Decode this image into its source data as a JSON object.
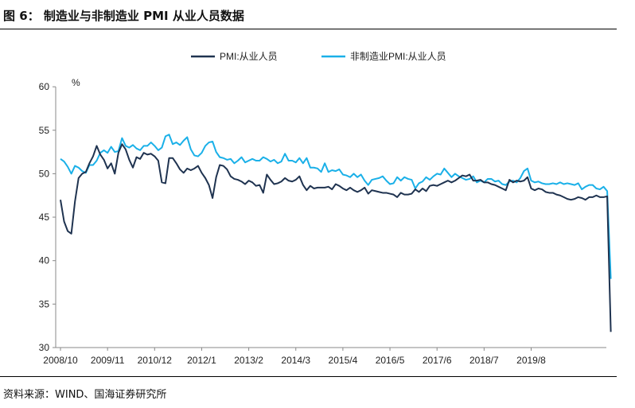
{
  "figure": {
    "title": "图 6：  制造业与非制造业 PMI 从业人员数据",
    "source": "资料来源：WIND、国海证券研究所"
  },
  "colors": {
    "series1": "#1f3350",
    "series2": "#1ab0e8",
    "axis": "#888888",
    "text": "#222222"
  },
  "chart_data": {
    "type": "line",
    "title": "",
    "xlabel": "",
    "ylabel": "%",
    "ylim": [
      30,
      60
    ],
    "yticks": [
      30,
      35,
      40,
      45,
      50,
      55,
      60
    ],
    "x_start": "2008-10",
    "x_tick_labels": [
      "2008/10",
      "2009/11",
      "2010/12",
      "2012/1",
      "2013/2",
      "2014/3",
      "2015/4",
      "2016/5",
      "2017/6",
      "2018/7",
      "2019/8"
    ],
    "legend_position": "top-center",
    "grid": false,
    "series": [
      {
        "name": "PMI:从业人员",
        "color": "#1f3350",
        "values": [
          47.0,
          44.5,
          43.4,
          43.1,
          46.8,
          49.5,
          50.0,
          50.2,
          51.2,
          52.0,
          53.2,
          52.2,
          51.6,
          50.6,
          51.2,
          50.0,
          52.4,
          53.4,
          52.8,
          51.6,
          50.7,
          51.9,
          51.7,
          52.4,
          52.2,
          52.3,
          52.0,
          51.5,
          49.0,
          48.9,
          51.8,
          51.8,
          51.2,
          50.5,
          50.1,
          50.6,
          50.4,
          50.6,
          50.9,
          50.1,
          49.5,
          48.7,
          47.2,
          49.6,
          51.0,
          50.9,
          50.5,
          49.7,
          49.4,
          49.3,
          49.1,
          48.8,
          49.2,
          49.0,
          48.6,
          48.7,
          47.8,
          49.9,
          49.3,
          48.8,
          48.9,
          49.1,
          49.5,
          49.2,
          49.1,
          49.3,
          49.7,
          48.7,
          48.1,
          48.6,
          48.3,
          48.4,
          48.4,
          48.4,
          48.5,
          48.2,
          48.8,
          48.6,
          48.3,
          48.1,
          48.4,
          48.1,
          47.9,
          48.1,
          48.4,
          47.7,
          48.1,
          48.0,
          47.9,
          47.8,
          47.8,
          47.7,
          47.6,
          47.3,
          47.8,
          47.6,
          47.6,
          47.7,
          48.2,
          47.9,
          48.3,
          48.0,
          48.6,
          48.7,
          48.6,
          48.8,
          49.0,
          49.2,
          49.0,
          49.2,
          49.5,
          49.8,
          49.7,
          49.9,
          49.2,
          49.2,
          49.3,
          49.0,
          49.0,
          48.8,
          48.7,
          48.5,
          48.3,
          48.1,
          49.3,
          49.0,
          49.2,
          49.1,
          49.2,
          49.6,
          48.3,
          48.1,
          48.3,
          48.2,
          47.9,
          47.8,
          47.8,
          47.6,
          47.5,
          47.3,
          47.1,
          47.0,
          47.1,
          47.3,
          47.2,
          47.0,
          47.3,
          47.3,
          47.5,
          47.3,
          47.3,
          47.4,
          31.8
        ]
      },
      {
        "name": "非制造业PMI:从业人员",
        "color": "#1ab0e8",
        "values": [
          51.7,
          51.4,
          50.8,
          50.0,
          50.9,
          50.7,
          50.3,
          50.1,
          51.0,
          51.0,
          51.5,
          52.4,
          52.7,
          52.4,
          53.1,
          52.5,
          52.6,
          54.1,
          53.2,
          53.0,
          53.3,
          52.9,
          52.7,
          53.2,
          53.2,
          53.6,
          53.2,
          52.7,
          53.0,
          54.3,
          54.5,
          53.4,
          53.6,
          53.3,
          53.8,
          54.2,
          52.8,
          52.1,
          52.0,
          52.4,
          53.2,
          53.6,
          53.7,
          52.5,
          51.9,
          51.8,
          51.6,
          51.7,
          51.2,
          51.5,
          51.9,
          51.3,
          51.5,
          51.7,
          51.5,
          51.5,
          51.9,
          51.7,
          51.4,
          51.6,
          51.2,
          51.4,
          52.3,
          51.5,
          51.5,
          51.3,
          51.8,
          51.2,
          51.8,
          50.7,
          50.7,
          50.6,
          50.2,
          51.2,
          50.2,
          50.4,
          50.3,
          50.5,
          49.9,
          49.8,
          49.6,
          50.0,
          49.6,
          49.9,
          49.2,
          48.7,
          49.3,
          49.4,
          49.5,
          49.7,
          49.2,
          48.8,
          48.9,
          49.6,
          49.2,
          49.6,
          49.4,
          49.3,
          48.3,
          48.9,
          49.1,
          49.6,
          49.3,
          49.7,
          50.0,
          49.9,
          50.6,
          50.1,
          49.6,
          50.0,
          49.7,
          49.5,
          49.3,
          49.4,
          49.7,
          49.0,
          49.2,
          49.0,
          49.4,
          49.4,
          49.1,
          49.2,
          48.8,
          48.7,
          49.1,
          49.2,
          49.0,
          49.5,
          50.3,
          50.6,
          49.2,
          49.0,
          49.1,
          48.9,
          48.8,
          48.8,
          48.9,
          48.8,
          49.0,
          48.8,
          48.9,
          48.8,
          48.7,
          48.9,
          48.2,
          48.5,
          48.7,
          48.7,
          48.3,
          48.2,
          48.5,
          48.0,
          37.9
        ]
      }
    ]
  }
}
